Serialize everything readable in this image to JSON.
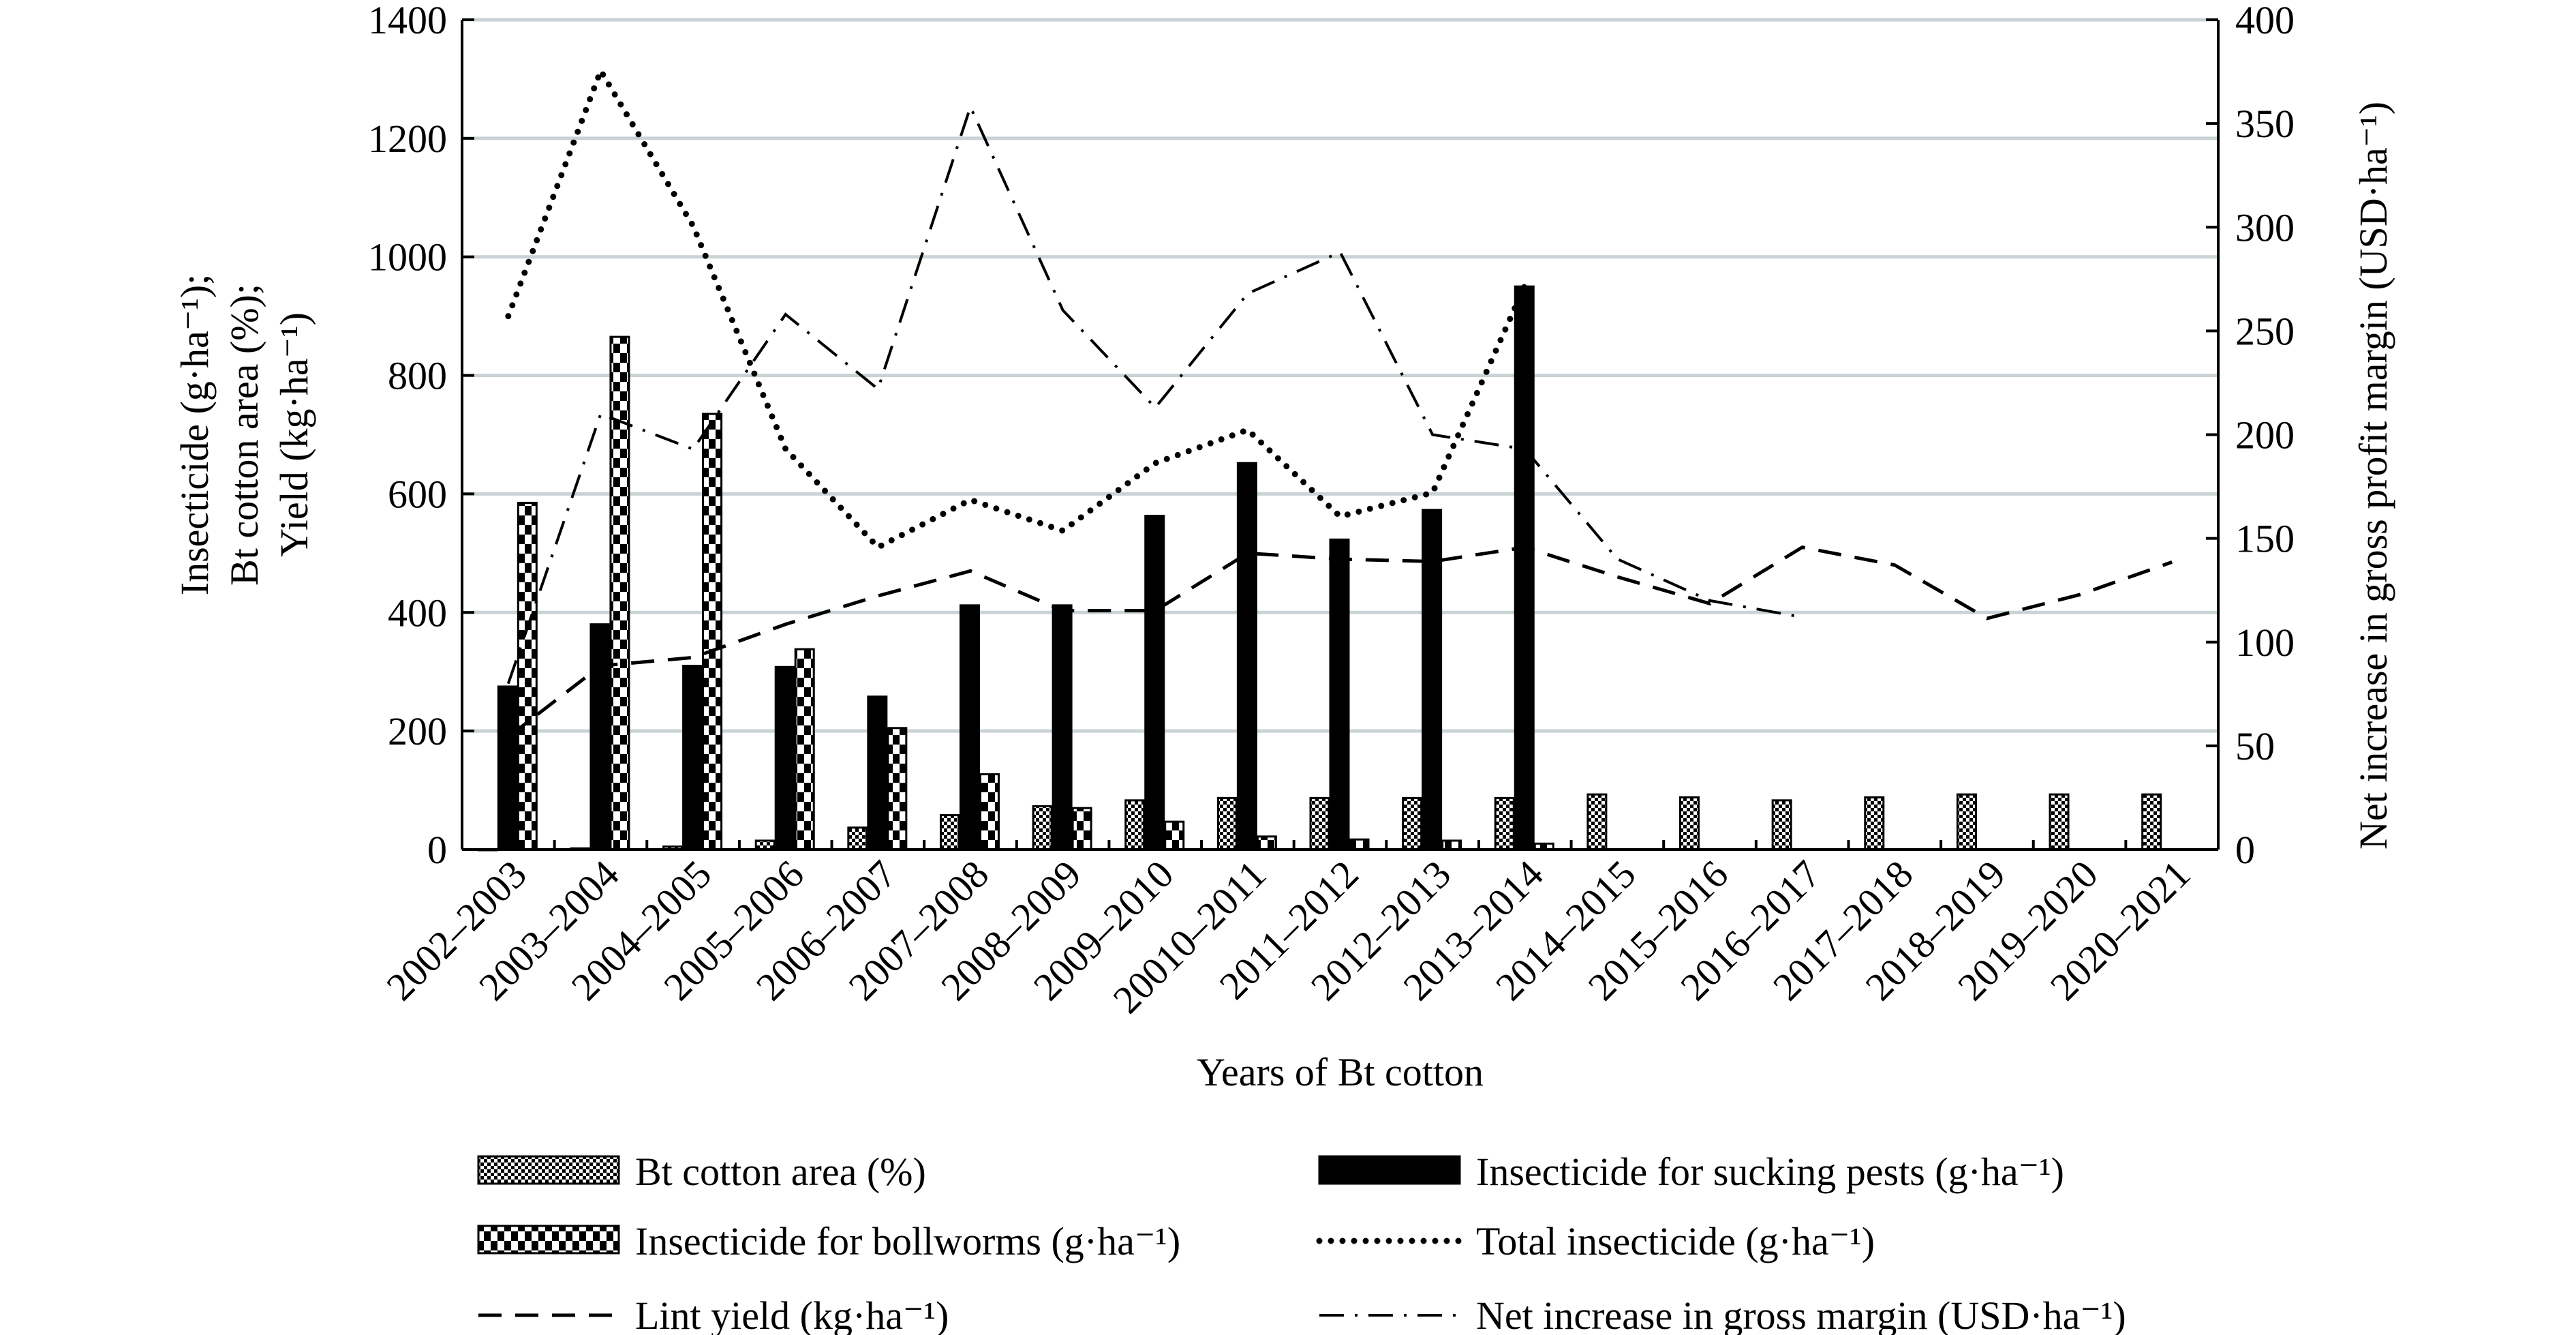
{
  "chart_data": {
    "type": "bar",
    "title": "",
    "xlabel": "Years of Bt cotton",
    "ylabel_left": [
      "Insecticide (g·ha⁻¹);",
      "Bt cotton area (%);",
      "Yield (kg·ha⁻¹)"
    ],
    "ylabel_right": "Net increase in gross profit margin (USD·ha⁻¹)",
    "ylim_left": [
      0,
      1400
    ],
    "ylim_right": [
      0,
      400
    ],
    "yticks_left": [
      "0",
      "200",
      "400",
      "600",
      "800",
      "1000",
      "1200",
      "1400"
    ],
    "yticks_right": [
      "0",
      "50",
      "100",
      "150",
      "200",
      "250",
      "300",
      "350",
      "400"
    ],
    "grid": true,
    "legend_position": "bottom",
    "categories": [
      "2002–2003",
      "2003–2004",
      "2004–2005",
      "2005–2006",
      "2006–2007",
      "2007–2008",
      "2008–2009",
      "2009–2010",
      "20010–2011",
      "2011–2012",
      "2012–2013",
      "2013–2014",
      "2014–2015",
      "2015–2016",
      "2016–2017",
      "2017–2018",
      "2018–2019",
      "2019–2020",
      "2020–2021"
    ],
    "series": [
      {
        "name": "Bt cotton area (%)",
        "kind": "bar",
        "axis": "left",
        "pattern": "fine-check",
        "values": [
          0,
          2,
          5,
          15,
          37,
          58,
          73,
          83,
          87,
          87,
          87,
          87,
          93,
          88,
          83,
          88,
          93,
          93,
          93
        ]
      },
      {
        "name": "Insecticide for sucking pests (g·ha⁻¹)",
        "kind": "bar",
        "axis": "left",
        "pattern": "solid",
        "values": [
          275,
          380,
          310,
          308,
          258,
          412,
          412,
          563,
          652,
          523,
          573,
          950,
          null,
          null,
          null,
          null,
          null,
          null,
          null
        ]
      },
      {
        "name": "Insecticide for bollworms (g·ha⁻¹)",
        "kind": "bar",
        "axis": "left",
        "pattern": "coarse-check",
        "values": [
          585,
          865,
          735,
          338,
          205,
          127,
          70,
          47,
          22,
          17,
          15,
          10,
          null,
          null,
          null,
          null,
          null,
          null,
          null
        ]
      },
      {
        "name": "Total insecticide (g·ha⁻¹)",
        "kind": "line",
        "axis": "left",
        "style": "dotted",
        "values": [
          900,
          1314,
          1052,
          676,
          510,
          590,
          538,
          652,
          708,
          562,
          602,
          952,
          null,
          null,
          null,
          null,
          null,
          null,
          null
        ]
      },
      {
        "name": "Lint yield (kg·ha⁻¹)",
        "kind": "line",
        "axis": "left",
        "style": "dashed",
        "values": [
          190,
          310,
          324,
          380,
          428,
          470,
          403,
          403,
          500,
          490,
          486,
          510,
          460,
          415,
          510,
          480,
          390,
          430,
          485
        ]
      },
      {
        "name": "Net increase in gross margin (USD·ha⁻¹)",
        "kind": "line",
        "axis": "right",
        "style": "dash-dot",
        "values": [
          80,
          210,
          193,
          258,
          222,
          358,
          260,
          213,
          268,
          288,
          200,
          193,
          140,
          120,
          112,
          null,
          null,
          null,
          null
        ]
      }
    ]
  }
}
